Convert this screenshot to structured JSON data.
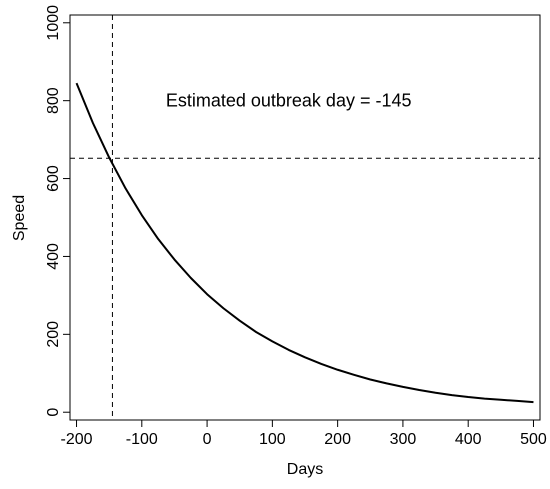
{
  "chart_data": {
    "type": "line",
    "xlabel": "Days",
    "ylabel": "Speed",
    "xlim": [
      -210,
      510
    ],
    "ylim": [
      -20,
      1020
    ],
    "x_ticks": [
      -200,
      -100,
      0,
      100,
      200,
      300,
      400,
      500
    ],
    "y_ticks": [
      0,
      200,
      400,
      600,
      800,
      1000
    ],
    "grid": false,
    "series": [
      {
        "color": "#000000",
        "x": [
          -200,
          -175,
          -150,
          -125,
          -100,
          -75,
          -50,
          -25,
          0,
          25,
          50,
          75,
          100,
          125,
          150,
          175,
          200,
          225,
          250,
          275,
          300,
          325,
          350,
          375,
          400,
          425,
          450,
          475,
          500
        ],
        "y": [
          845,
          743,
          654,
          575,
          506,
          445,
          392,
          345,
          303,
          267,
          235,
          206,
          182,
          160,
          141,
          124,
          109,
          96,
          84,
          74,
          65,
          57,
          50,
          44,
          39,
          35,
          32,
          29,
          26
        ]
      }
    ],
    "reference_lines": [
      {
        "orientation": "vertical",
        "value": -145,
        "style": "dashed"
      },
      {
        "orientation": "horizontal",
        "value": 652,
        "style": "dashed"
      }
    ],
    "annotations": [
      {
        "text": "Estimated outbreak day = -145",
        "x": 125,
        "y": 800
      }
    ]
  }
}
